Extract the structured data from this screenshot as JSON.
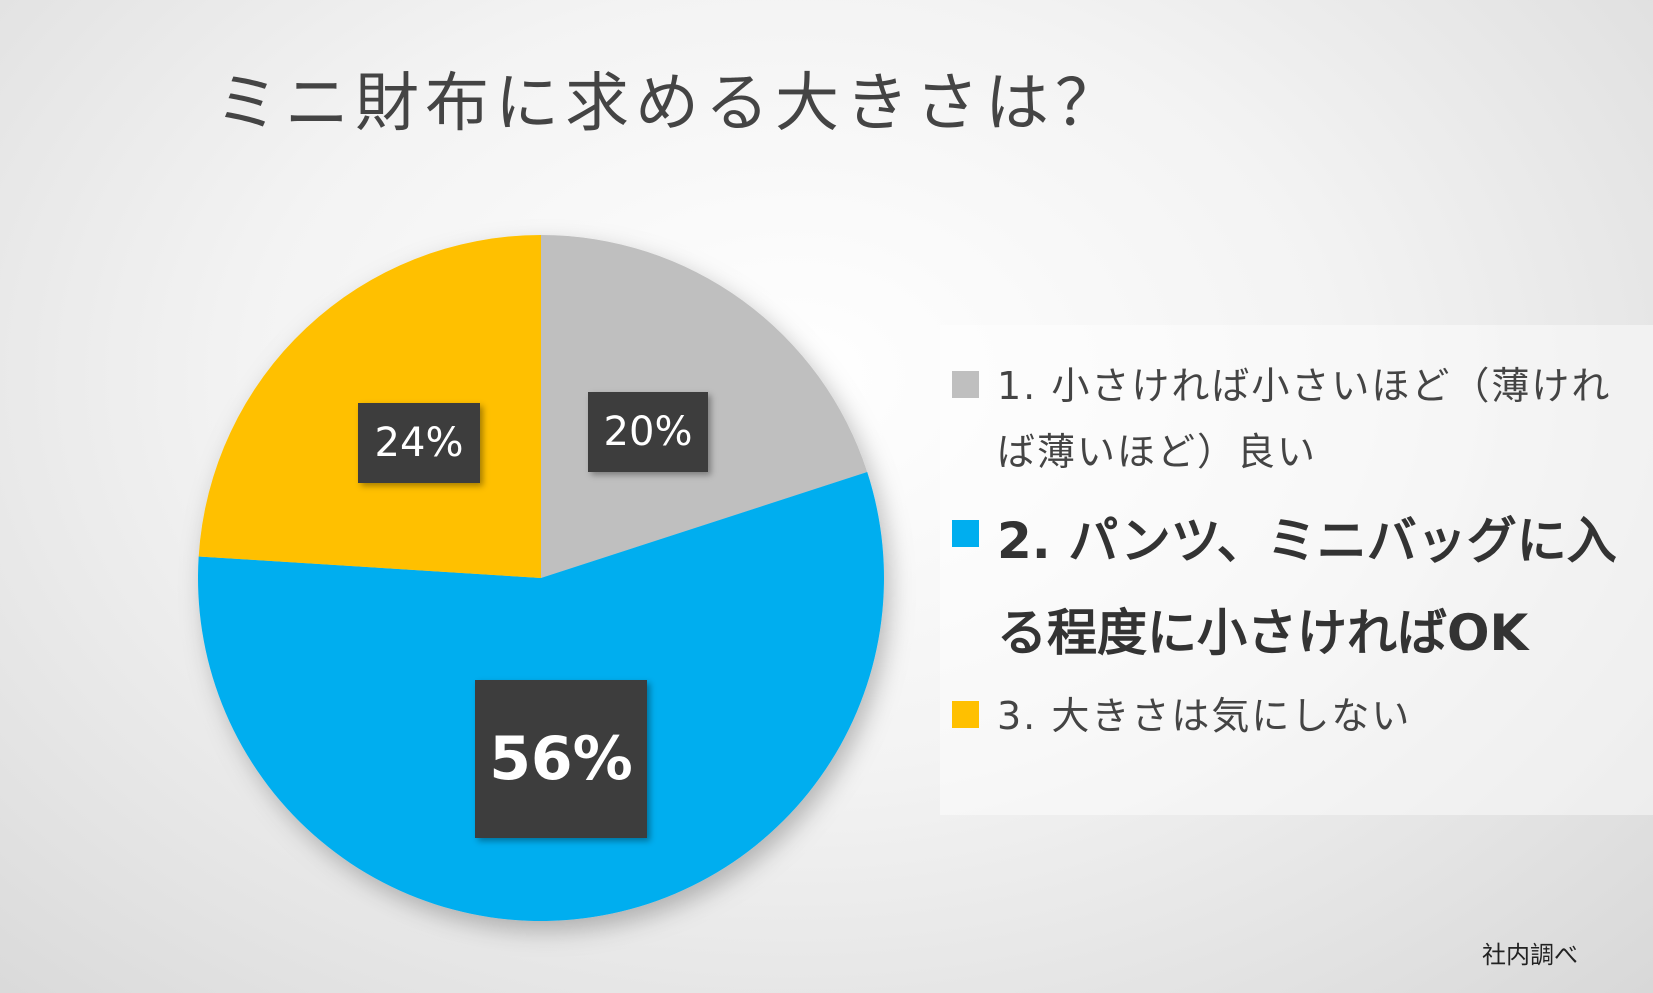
{
  "chart_data": {
    "type": "pie",
    "title": "ミニ財布に求める大きさは？",
    "slices": [
      {
        "label": "1. 小さければ小さいほど（薄ければ薄いほど）良い",
        "value": 20,
        "value_label": "20%",
        "color": "#bfbfbf"
      },
      {
        "label": "2. パンツ、ミニバッグに入る程度に小さければOK",
        "value": 56,
        "value_label": "56%",
        "color": "#00aeef"
      },
      {
        "label": "3. 大きさは気にしない",
        "value": 24,
        "value_label": "24%",
        "color": "#ffc000"
      }
    ],
    "legend_position": "right",
    "highlighted_slice": 1
  },
  "source_note": "社内調べ"
}
